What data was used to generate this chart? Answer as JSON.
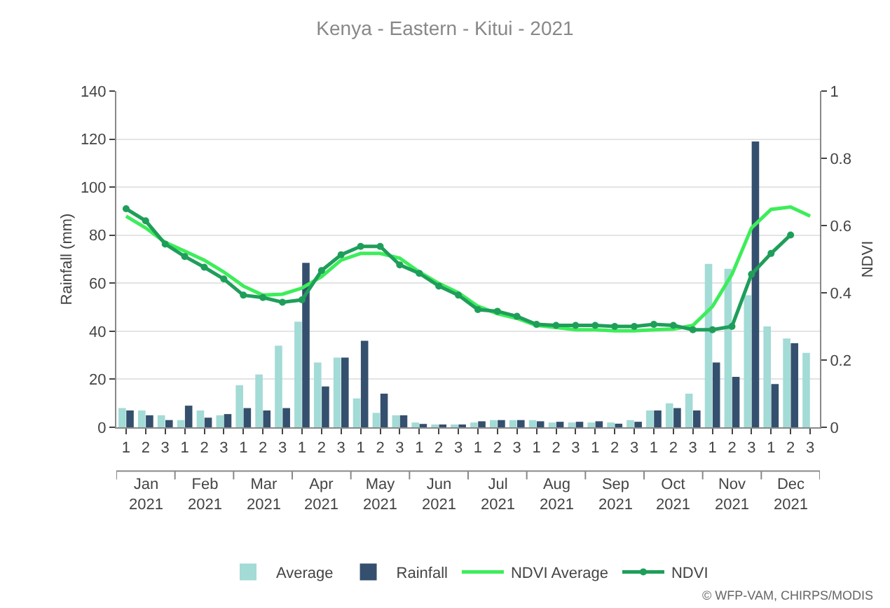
{
  "chart_data": {
    "type": "bar",
    "title": "Kenya - Eastern - Kitui - 2021",
    "ylabel": "Rainfall (mm)",
    "y2label": "NDVI",
    "categories": [
      "1",
      "2",
      "3",
      "1",
      "2",
      "3",
      "1",
      "2",
      "3",
      "1",
      "2",
      "3",
      "1",
      "2",
      "3",
      "1",
      "2",
      "3",
      "1",
      "2",
      "3",
      "1",
      "2",
      "3",
      "1",
      "2",
      "3",
      "1",
      "2",
      "3",
      "1",
      "2",
      "3",
      "1",
      "2",
      "3"
    ],
    "series": [
      {
        "name": "Average",
        "color": "#a3dbd6",
        "values": [
          8,
          7,
          5,
          3,
          7,
          5,
          17.5,
          22,
          34,
          44,
          27,
          29,
          12,
          6,
          5,
          2,
          1,
          1,
          2,
          3,
          3,
          3,
          2,
          2,
          2,
          2,
          3,
          7,
          10,
          14,
          68,
          66,
          55,
          42,
          37,
          31
        ]
      },
      {
        "name": "Rainfall",
        "color": "#34506e",
        "values": [
          7,
          5,
          3,
          9,
          4,
          5.5,
          8,
          7,
          8,
          68.5,
          17,
          29,
          36,
          14,
          5,
          1.4,
          0.6,
          1,
          2.5,
          3,
          3,
          2.5,
          2.3,
          2.3,
          2.5,
          1.5,
          2.3,
          7,
          8,
          7,
          27,
          21,
          119,
          18,
          35,
          null
        ]
      },
      {
        "name": "NDVI Average",
        "type": "line",
        "axis": "y2",
        "color": "#3ded5a",
        "values": [
          0.628,
          0.593,
          0.55,
          0.524,
          0.497,
          0.462,
          0.42,
          0.393,
          0.396,
          0.414,
          0.448,
          0.497,
          0.517,
          0.517,
          0.503,
          0.462,
          0.428,
          0.4,
          0.36,
          0.338,
          0.324,
          0.303,
          0.297,
          0.29,
          0.29,
          0.287,
          0.287,
          0.29,
          0.292,
          0.303,
          0.359,
          0.455,
          0.593,
          0.648,
          0.655,
          0.628
        ]
      },
      {
        "name": "NDVI",
        "type": "line",
        "axis": "y2",
        "color": "#1f9e5a",
        "marker": "circle",
        "values": [
          0.65,
          0.614,
          0.545,
          0.508,
          0.476,
          0.441,
          0.393,
          0.386,
          0.372,
          0.379,
          0.466,
          0.513,
          0.538,
          0.538,
          0.483,
          0.458,
          0.42,
          0.393,
          0.35,
          0.345,
          0.33,
          0.306,
          0.303,
          0.303,
          0.303,
          0.3,
          0.3,
          0.306,
          0.303,
          0.29,
          0.29,
          0.3,
          0.455,
          0.517,
          0.572,
          null
        ]
      }
    ],
    "ylim": [
      0,
      140
    ],
    "yticks": [
      0,
      20,
      40,
      60,
      80,
      100,
      120,
      140
    ],
    "y2lim": [
      0,
      1
    ],
    "y2ticks": [
      0,
      0.2,
      0.4,
      0.6,
      0.8,
      1
    ],
    "grid": "y",
    "legend": "bottom",
    "annotations": [
      "Jan\n2021",
      "Feb\n2021",
      "Mar\n2021",
      "Apr\n2021",
      "May\n2021",
      "Jun\n2021",
      "Jul\n2021",
      "Aug\n2021",
      "Sep\n2021",
      "Oct\n2021",
      "Nov\n2021",
      "Dec\n2021",
      "© WFP-VAM, CHIRPS/MODIS"
    ]
  }
}
